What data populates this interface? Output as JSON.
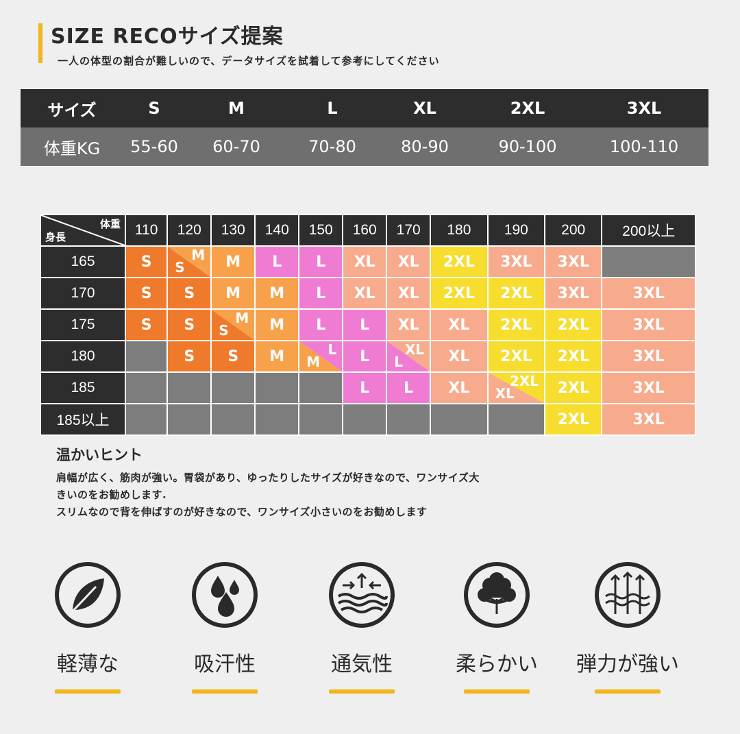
{
  "header": {
    "title": "SIZE RECOサイズ提案",
    "subtitle": "一人の体型の割合が難しいので、データサイズを試着して参考にしてください"
  },
  "weight_table": {
    "header_label": "サイズ",
    "sizes": [
      "S",
      "M",
      "L",
      "XL",
      "2XL",
      "3XL"
    ],
    "row_label": "体重KG",
    "weights": [
      "55-60",
      "60-70",
      "70-80",
      "80-90",
      "90-100",
      "100-110"
    ]
  },
  "size_grid": {
    "corner_weight": "体重",
    "corner_height": "身長",
    "weights": [
      "110",
      "120",
      "130",
      "140",
      "150",
      "160",
      "170",
      "180",
      "190",
      "200",
      "200以上"
    ],
    "heights": [
      "165",
      "170",
      "175",
      "180",
      "185",
      "185以上"
    ],
    "rows": [
      [
        "S",
        "S/M",
        "M",
        "L",
        "L",
        "XL",
        "XL",
        "2XL",
        "3XL",
        "3XL",
        ""
      ],
      [
        "S",
        "S",
        "M",
        "M",
        "L",
        "XL",
        "XL",
        "2XL",
        "2XL",
        "3XL",
        "3XL"
      ],
      [
        "S",
        "S",
        "S/M",
        "M",
        "L",
        "L",
        "XL",
        "XL",
        "2XL",
        "2XL",
        "3XL"
      ],
      [
        "",
        "S",
        "S",
        "M",
        "M/L",
        "L",
        "L/XL",
        "XL",
        "2XL",
        "2XL",
        "3XL"
      ],
      [
        "",
        "",
        "",
        "",
        "",
        "L",
        "L",
        "XL",
        "XL/2XL",
        "2XL",
        "3XL"
      ],
      [
        "",
        "",
        "",
        "",
        "",
        "",
        "",
        "",
        "",
        "2XL",
        "3XL"
      ]
    ],
    "colors": {
      "S": "#f07a2b",
      "M": "#f7a14b",
      "L": "#ef7cd2",
      "XL": "#f7ab8c",
      "2XL": "#f6dd2e",
      "3XL": "#f7ab8c",
      "none": "#7d7d7d"
    }
  },
  "hint": {
    "title": "温かいヒント",
    "lines": [
      "肩幅が広く、筋肉が強い。胃袋があり、ゆったりしたサイズが好きなので、ワンサイズ大",
      "きいのをお勧めします.",
      "スリムなので背を伸ばすのが好きなので、ワンサイズ小さいのをお勧めします"
    ]
  },
  "features": [
    {
      "icon": "leaf-icon",
      "label": "軽薄な"
    },
    {
      "icon": "water-drops-icon",
      "label": "吸汗性"
    },
    {
      "icon": "airflow-icon",
      "label": "通気性"
    },
    {
      "icon": "cotton-icon",
      "label": "柔らかい"
    },
    {
      "icon": "stretch-arrows-icon",
      "label": "弾力が強い"
    }
  ],
  "accent_color": "#f2b61c"
}
